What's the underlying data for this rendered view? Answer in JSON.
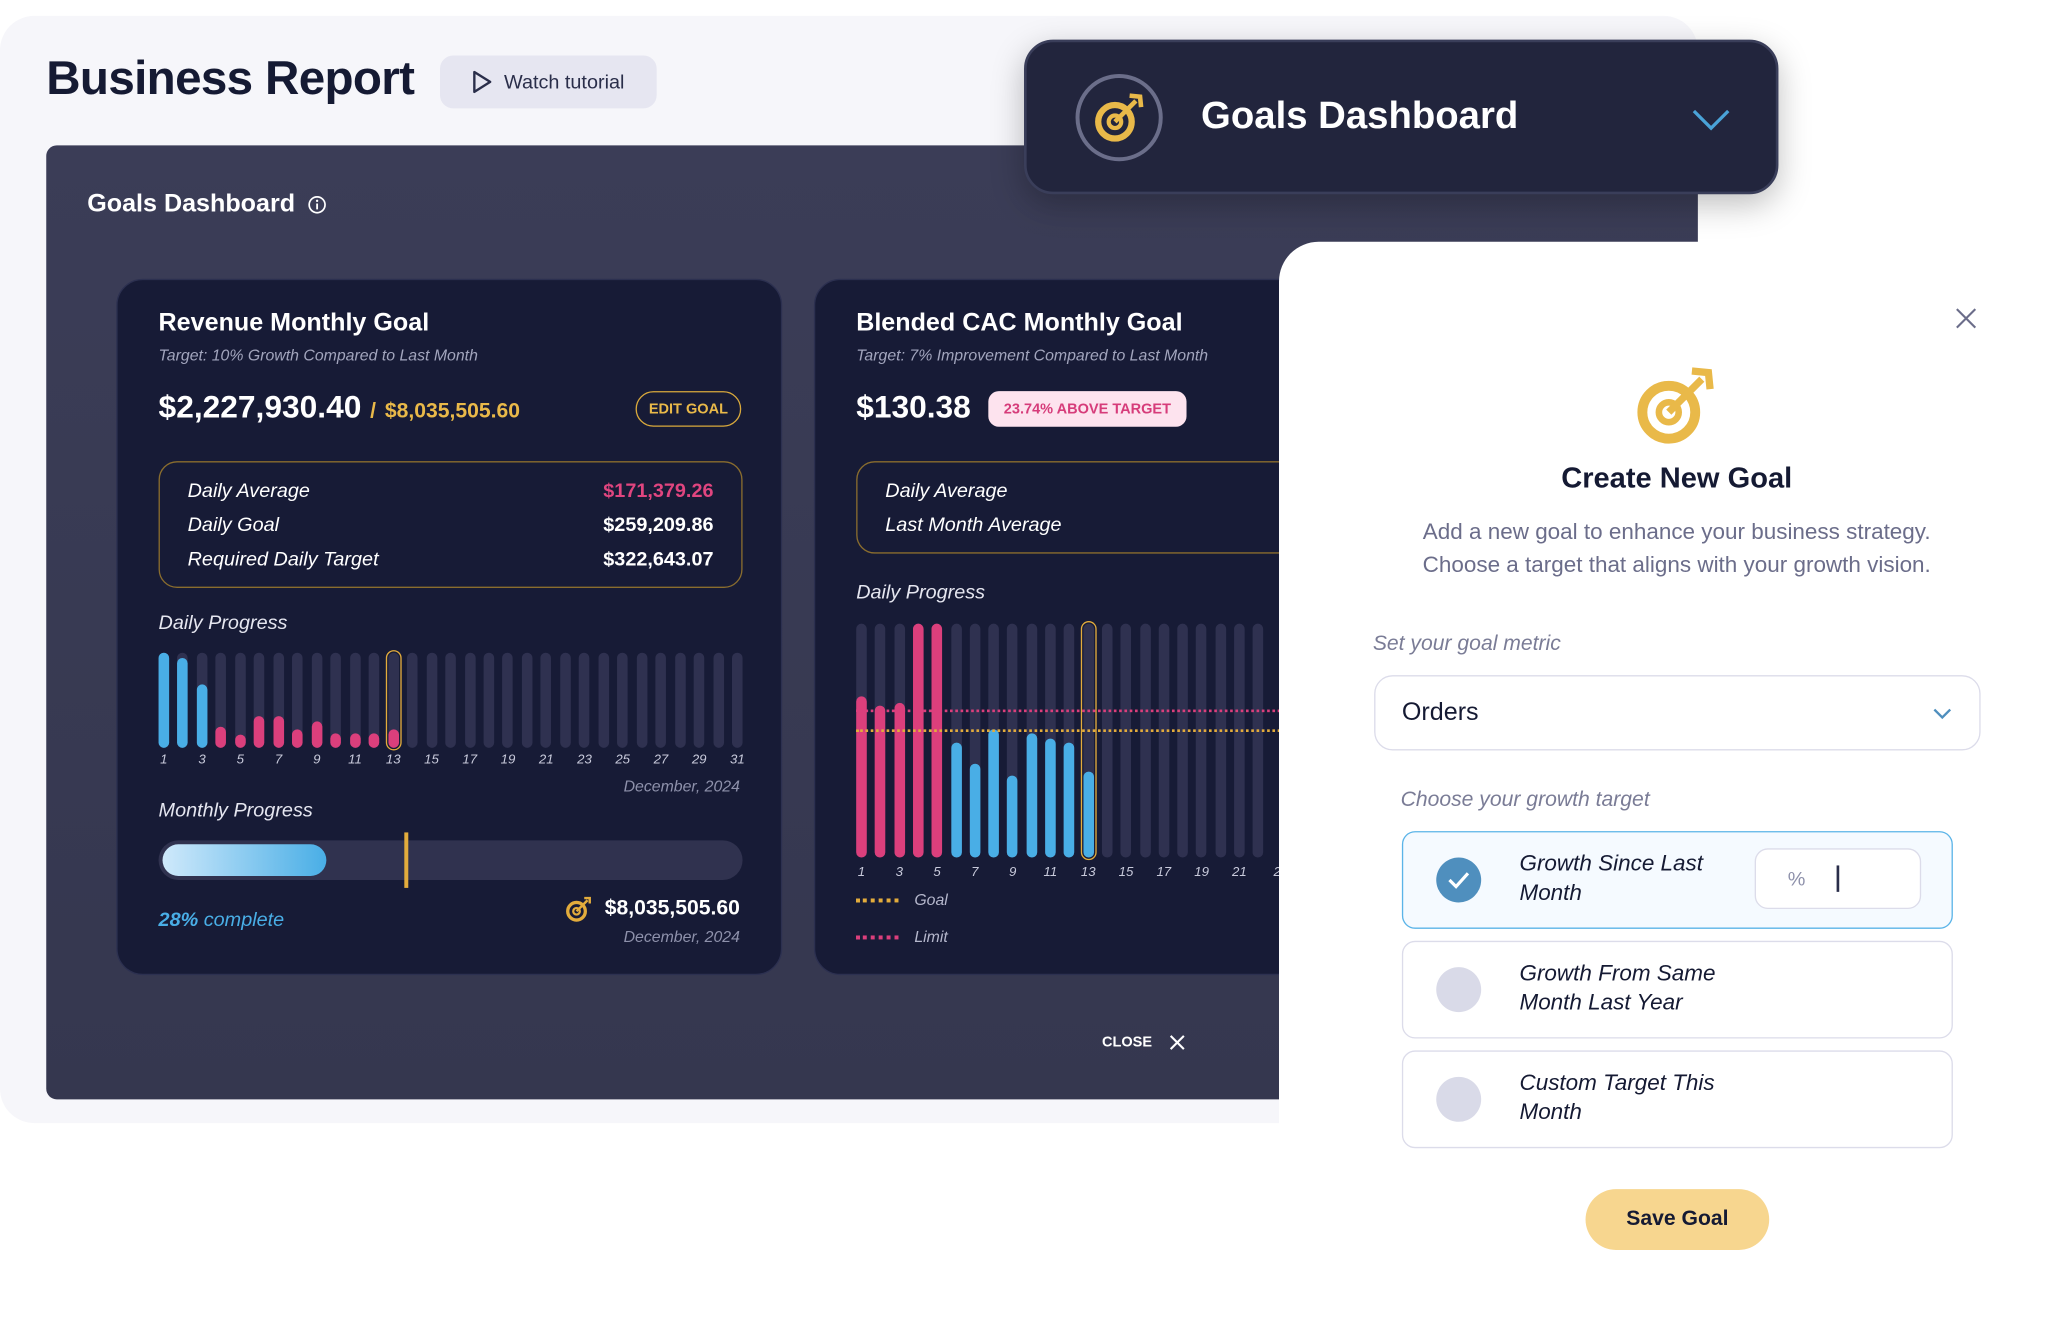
{
  "header": {
    "title": "Business Report",
    "tutorial_label": "Watch tutorial"
  },
  "panel": {
    "title": "Goals Dashboard",
    "close_label": "CLOSE"
  },
  "dropdown": {
    "label": "Goals Dashboard"
  },
  "colors": {
    "above": "#49aee6",
    "below": "#db3f7c",
    "goal": "#e3ac3c",
    "empty": "#2f3150",
    "highlight": "#e3ac3c"
  },
  "revenue": {
    "title": "Revenue Monthly Goal",
    "subtitle": "Target: 10% Growth Compared to Last Month",
    "amount": "$2,227,930.40",
    "separator": "/",
    "goal_amount": "$8,035,505.60",
    "edit_label": "EDIT GOAL",
    "stats": [
      {
        "label": "Daily Average",
        "value": "$171,379.26",
        "color": "#e0457f"
      },
      {
        "label": "Daily Goal",
        "value": "$259,209.86",
        "color": "#ffffff"
      },
      {
        "label": "Required Daily Target",
        "value": "$322,643.07",
        "color": "#ffffff"
      }
    ],
    "daily_label": "Daily Progress",
    "daily_date": "December, 2024",
    "monthly_label": "Monthly Progress",
    "monthly_percent": 28,
    "monthly_expected_percent": 42,
    "percent_text": "28%",
    "complete_text": "complete",
    "target_amount": "$8,035,505.60",
    "target_date": "December, 2024"
  },
  "cac": {
    "title": "Blended CAC Monthly Goal",
    "subtitle": "Target: 7% Improvement Compared to Last Month",
    "amount": "$130.38",
    "badge": "23.74% ABOVE TARGET",
    "stats": [
      {
        "label": "Daily Average"
      },
      {
        "label": "Last Month Average"
      }
    ],
    "daily_label": "Daily Progress",
    "legend": [
      {
        "label": "Goal",
        "color": "#e3ac3c"
      },
      {
        "label": "Limit",
        "color": "#db3f7c"
      }
    ]
  },
  "chart_data": [
    {
      "type": "bar",
      "title": "Daily Progress",
      "xlabel": "December, 2024",
      "categories": [
        1,
        2,
        3,
        4,
        5,
        6,
        7,
        8,
        9,
        10,
        11,
        12,
        13,
        14,
        15,
        16,
        17,
        18,
        19,
        20,
        21,
        22,
        23,
        24,
        25,
        26,
        27,
        28,
        29,
        30,
        31
      ],
      "tick_labels": [
        "1",
        "3",
        "5",
        "7",
        "9",
        "11",
        "13",
        "15",
        "17",
        "19",
        "21",
        "23",
        "25",
        "27",
        "29",
        "31"
      ],
      "values": [
        1.0,
        0.94,
        0.66,
        0.22,
        0.14,
        0.34,
        0.34,
        0.2,
        0.28,
        0.15,
        0.15,
        0.15,
        0.2,
        null,
        null,
        null,
        null,
        null,
        null,
        null,
        null,
        null,
        null,
        null,
        null,
        null,
        null,
        null,
        null,
        null,
        null
      ],
      "status": [
        "above",
        "above",
        "above",
        "below",
        "below",
        "below",
        "below",
        "below",
        "below",
        "below",
        "below",
        "below",
        "below"
      ],
      "highlight_day": 13,
      "ylim": [
        0,
        1
      ]
    },
    {
      "type": "bar",
      "title": "Daily Progress",
      "categories": [
        1,
        2,
        3,
        4,
        5,
        6,
        7,
        8,
        9,
        10,
        11,
        12,
        13,
        14,
        15,
        16,
        17,
        18,
        19,
        20,
        21,
        22
      ],
      "tick_labels": [
        "1",
        "3",
        "5",
        "7",
        "9",
        "11",
        "13",
        "15",
        "17",
        "19",
        "21",
        "2"
      ],
      "values": [
        0.69,
        0.65,
        0.66,
        1.0,
        1.0,
        0.49,
        0.4,
        0.55,
        0.35,
        0.53,
        0.51,
        0.49,
        0.37,
        null,
        null,
        null,
        null,
        null,
        null,
        null,
        null,
        null
      ],
      "status": [
        "below",
        "below",
        "below",
        "below",
        "below",
        "above",
        "above",
        "above",
        "above",
        "above",
        "above",
        "above",
        "above"
      ],
      "goal_line": 0.55,
      "limit_line": 0.63,
      "highlight_day": 13,
      "ylim": [
        0,
        1
      ]
    }
  ],
  "modal": {
    "title": "Create New Goal",
    "description_1": "Add a new goal to enhance your business strategy.",
    "description_2": "Choose a target that aligns with your growth vision.",
    "metric_label": "Set your goal metric",
    "metric_value": "Orders",
    "target_label": "Choose your growth target",
    "options": [
      {
        "label": "Growth Since Last Month",
        "selected": true
      },
      {
        "label": "Growth From Same Month Last Year",
        "selected": false
      },
      {
        "label": "Custom Target This Month",
        "selected": false
      }
    ],
    "percent_symbol": "%",
    "percent_value": "",
    "save_label": "Save Goal"
  }
}
